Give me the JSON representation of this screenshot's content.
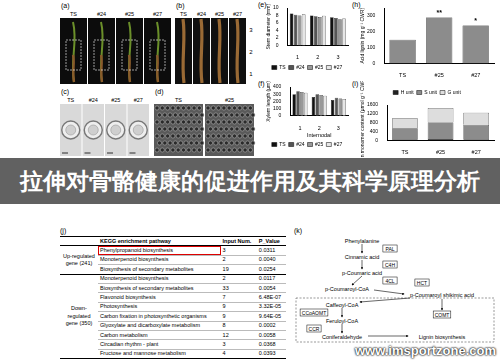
{
  "banner": "拉伸对骨骼健康的促进作用及其科学原理分析",
  "watermark": "www.imsportzone.com",
  "image_panels": [
    {
      "label": "(a)",
      "captions": [
        "TS",
        "#24",
        "#25",
        "#27"
      ]
    },
    {
      "label": "(b)",
      "captions": [
        "TS",
        "#24",
        "#25",
        "#27"
      ],
      "internode_marks": [
        "3",
        "2",
        "1"
      ]
    },
    {
      "label": "(c)",
      "captions": [
        "TS",
        "#24",
        "#25",
        "#27"
      ]
    },
    {
      "label": "(d)",
      "captions": [
        "TS",
        "#25"
      ]
    }
  ],
  "chart_data": [
    {
      "panel": "(e)",
      "type": "bar",
      "y_label": "Stem diameter (mm)",
      "categories": [
        "1",
        "2",
        "3"
      ],
      "series": [
        {
          "name": "TS",
          "color": "#111111",
          "values": [
            8.5,
            8.0,
            7.5
          ]
        },
        {
          "name": "#24",
          "color": "#555555",
          "values": [
            8.2,
            7.8,
            7.3
          ]
        },
        {
          "name": "#25",
          "color": "#999999",
          "values": [
            8.0,
            7.6,
            7.0
          ]
        },
        {
          "name": "#27",
          "color": "#e6e6e6",
          "values": [
            8.3,
            7.9,
            7.2
          ]
        }
      ],
      "ylim": [
        0,
        10
      ],
      "yticks": [
        0,
        2,
        4,
        6,
        8,
        10
      ],
      "grid": false,
      "legend": "bottom"
    },
    {
      "panel": "(f)",
      "type": "bar",
      "y_label": "Xylem length (μm)",
      "x_label": "Internodal",
      "categories": [
        "1",
        "2",
        "3"
      ],
      "series": [
        {
          "name": "TS",
          "color": "#111111",
          "values": [
            300,
            260,
            220
          ]
        },
        {
          "name": "#24",
          "color": "#555555",
          "values": [
            340,
            300,
            250
          ]
        },
        {
          "name": "#25",
          "color": "#999999",
          "values": [
            330,
            290,
            240
          ]
        },
        {
          "name": "#27",
          "color": "#e6e6e6",
          "values": [
            320,
            280,
            235
          ]
        }
      ],
      "ylim": [
        0,
        400
      ],
      "yticks": [
        0,
        100,
        200,
        300,
        400
      ],
      "grid": false,
      "legend": "bottom"
    },
    {
      "panel": "(h)",
      "type": "bar",
      "y_label": "Acid lignin (mg g⁻¹ CWR)",
      "categories": [
        "TS",
        "#25",
        "#27"
      ],
      "values": [
        150,
        290,
        240
      ],
      "color": "#8c8c8c",
      "significance": [
        null,
        "**",
        "*"
      ],
      "ylim": [
        0,
        350
      ],
      "yticks": [
        0,
        100,
        200,
        300
      ],
      "grid": false
    },
    {
      "panel": "(i)",
      "type": "bar",
      "stacked": true,
      "y_label": "Lignin monomer content (μmol g⁻¹ CWR)",
      "categories": [
        "TS",
        "#25",
        "#27"
      ],
      "series": [
        {
          "name": "H unit",
          "color": "#222222",
          "values": [
            50,
            60,
            55
          ]
        },
        {
          "name": "S unit",
          "color": "#8c8c8c",
          "values": [
            500,
            750,
            650
          ]
        },
        {
          "name": "G unit",
          "color": "#dddddd",
          "values": [
            450,
            650,
            550
          ]
        }
      ],
      "ylim": [
        0,
        1600
      ],
      "yticks": [
        0,
        400,
        800,
        1200,
        1600
      ],
      "grid": false,
      "legend": "top"
    }
  ],
  "table": {
    "label": "(j)",
    "header": [
      "KEGG enrichment pathway",
      "Input Num.",
      "P_Value"
    ],
    "highlighted": "Phenylpropanoid biosynthesis",
    "groups": [
      {
        "name": "Up-regulated gene (241)",
        "rows": [
          [
            "Phenylpropanoid biosynthesis",
            "3",
            "0.0311"
          ],
          [
            "Monoterpenoid biosynthesis",
            "2",
            "0.0040"
          ],
          [
            "Biosynthesis of secondary metabolites",
            "19",
            "0.0254"
          ]
        ]
      },
      {
        "name": "Down-regulated gene (350)",
        "rows": [
          [
            "Monoterpenoid biosynthesis",
            "2",
            "0.0117"
          ],
          [
            "Biosynthesis of secondary metabolites",
            "33",
            "0.0054"
          ],
          [
            "Flavonoid biosynthesis",
            "7",
            "6.48E-07"
          ],
          [
            "Photosynthesis",
            "9",
            "3.32E-05"
          ],
          [
            "Carbon fixation in photosynthetic organisms",
            "9",
            "9.64E-05"
          ],
          [
            "Glyoxylate and dicarboxylate metabolism",
            "8",
            "0.0002"
          ],
          [
            "Carbon metabolism",
            "12",
            "0.0058"
          ],
          [
            "Circadian rhythm - plant",
            "3",
            "0.0368"
          ],
          [
            "Fructose and mannose metabolism",
            "4",
            "0.0393"
          ]
        ]
      }
    ]
  },
  "pathway": {
    "label": "(k)",
    "nodes": [
      {
        "text": "Phenylalanine",
        "kind": "metabolite"
      },
      {
        "text": "PAL",
        "kind": "enzyme"
      },
      {
        "text": "Cinnamic acid",
        "kind": "metabolite"
      },
      {
        "text": "C4H",
        "kind": "enzyme"
      },
      {
        "text": "p-Coumaric acid",
        "kind": "metabolite"
      },
      {
        "text": "4CL",
        "kind": "enzyme"
      },
      {
        "text": "p-Coumaroyl-CoA",
        "kind": "metabolite"
      },
      {
        "text": "HCT",
        "kind": "enzyme"
      },
      {
        "text": "p-Coumaroyl shikimic acid",
        "kind": "metabolite"
      },
      {
        "text": "Caffeoyl-CoA",
        "kind": "metabolite"
      },
      {
        "text": "CCoAOMT",
        "kind": "enzyme"
      },
      {
        "text": "Feruloyl-CoA",
        "kind": "metabolite"
      },
      {
        "text": "CCR",
        "kind": "enzyme"
      },
      {
        "text": "COMT",
        "kind": "enzyme"
      },
      {
        "text": "Coniferaldehyde",
        "kind": "metabolite"
      },
      {
        "text": "Lignin biosynthesis",
        "kind": "metabolite"
      }
    ]
  }
}
